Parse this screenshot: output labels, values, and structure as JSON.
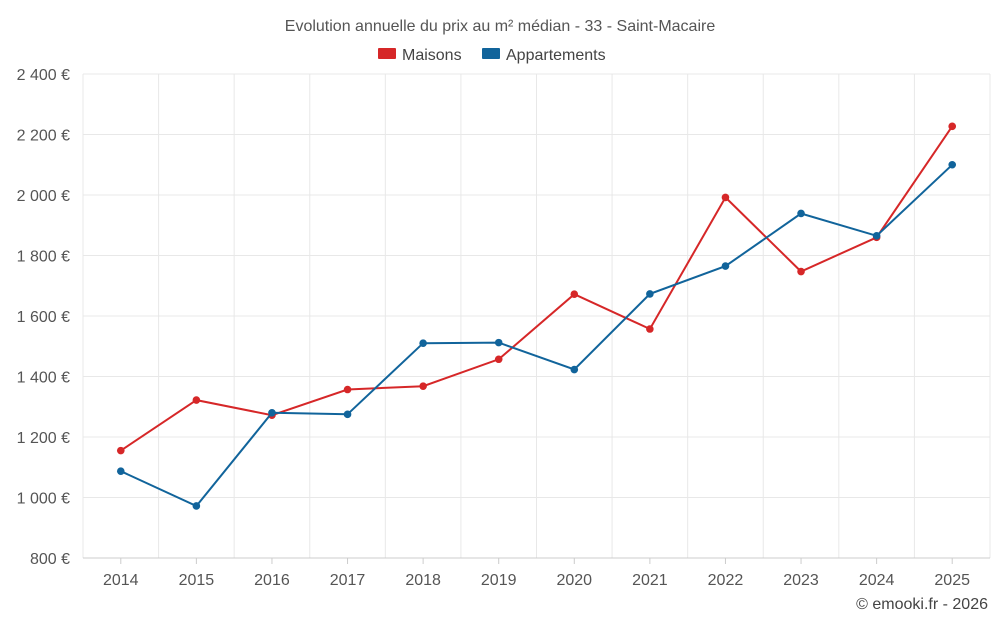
{
  "chart_data": {
    "type": "line",
    "title": "Evolution annuelle du prix au m² médian - 33 - Saint-Macaire",
    "x": [
      "2014",
      "2015",
      "2016",
      "2017",
      "2018",
      "2019",
      "2020",
      "2021",
      "2022",
      "2023",
      "2024",
      "2025"
    ],
    "ylim": [
      800,
      2400
    ],
    "yticks": [
      800,
      1000,
      1200,
      1400,
      1600,
      1800,
      2000,
      2200,
      2400
    ],
    "ytick_labels": [
      "800 €",
      "1 000 €",
      "1 200 €",
      "1 400 €",
      "1 600 €",
      "1 800 €",
      "2 000 €",
      "2 200 €",
      "2 400 €"
    ],
    "grid": true,
    "legend_position": "top-center",
    "series": [
      {
        "name": "Maisons",
        "color": "#d62728",
        "values": [
          1155,
          1322,
          1272,
          1357,
          1368,
          1457,
          1672,
          1557,
          1992,
          1747,
          1860,
          2227
        ]
      },
      {
        "name": "Appartements",
        "color": "#11649b",
        "values": [
          1087,
          972,
          1280,
          1275,
          1510,
          1512,
          1423,
          1673,
          1765,
          1939,
          1865,
          2100
        ]
      }
    ],
    "credit": "© emooki.fr - 2026"
  }
}
